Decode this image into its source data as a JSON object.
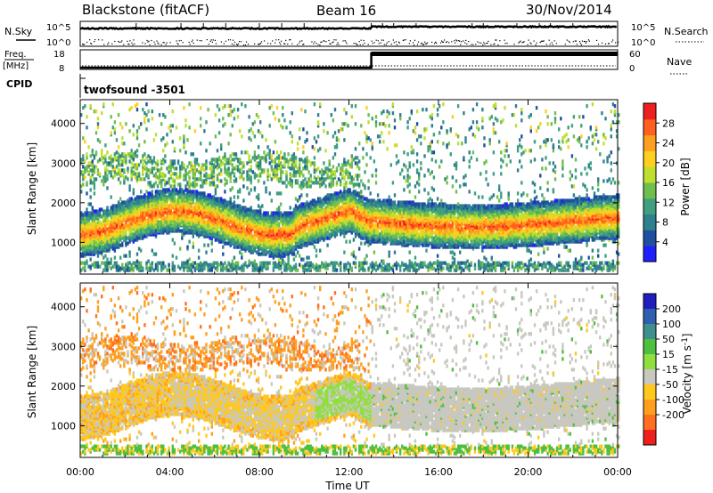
{
  "header": {
    "station": "Blackstone (fitACF)",
    "beam": "Beam 16",
    "date": "30/Nov/2014"
  },
  "nsky_panel": {
    "left_label": "N.Sky",
    "right_label": "N.Search",
    "ticks_left": [
      "10^5",
      "10^0"
    ],
    "ticks_right": [
      "10^5",
      "10^0"
    ]
  },
  "freq_panel": {
    "left_label_top": "Freq.",
    "left_label_bottom": "[MHz]",
    "right_label": "Nave",
    "ticks_left": [
      "18",
      "8"
    ],
    "ticks_right": [
      "60",
      "0"
    ]
  },
  "cpid_panel": {
    "label": "CPID",
    "mode": "twofsound  -3501"
  },
  "colors": {
    "power": [
      "#1f1fff",
      "#1f4fa0",
      "#2f7f8f",
      "#3f9f7f",
      "#6fbf4f",
      "#bfdf2f",
      "#ffcf1f",
      "#ff9f1f",
      "#ff5f1f",
      "#ef1f1f"
    ],
    "velocity": [
      "#1f1fbf",
      "#2f5faf",
      "#3f8f8f",
      "#4fbf3f",
      "#8fdf3f",
      "#c8c8c0",
      "#ffc81f",
      "#ff9f1f",
      "#ff6f1f",
      "#ef1f1f"
    ]
  },
  "chart_data": [
    {
      "type": "heatmap",
      "name": "Power",
      "ylabel": "Slant Range [km]",
      "ylim": [
        200,
        4600
      ],
      "yticks": [
        1000,
        2000,
        3000,
        4000
      ],
      "colorbar_label": "Power [dB]",
      "colorbar_ticks": [
        4,
        8,
        12,
        16,
        20,
        24,
        28
      ],
      "colorbar_range": [
        0,
        32
      ]
    },
    {
      "type": "heatmap",
      "name": "Velocity",
      "ylabel": "Slant Range [km]",
      "ylim": [
        200,
        4600
      ],
      "yticks": [
        1000,
        2000,
        3000,
        4000
      ],
      "colorbar_label": "Velocity [m s^-1]",
      "colorbar_ticks": [
        "200",
        "100",
        "50",
        "15",
        "-15",
        "-50",
        "-100",
        "-200"
      ]
    },
    {
      "type": "line",
      "name": "Frequency",
      "x_hours": [
        0,
        13,
        13,
        24
      ],
      "freq_mhz": [
        8,
        8,
        18,
        18
      ]
    }
  ],
  "time_axis": {
    "xlabel": "Time UT",
    "ticks": [
      "00:00",
      "04:00",
      "08:00",
      "12:00",
      "16:00",
      "20:00",
      "00:00"
    ],
    "xlim_hours": [
      0,
      24
    ]
  }
}
